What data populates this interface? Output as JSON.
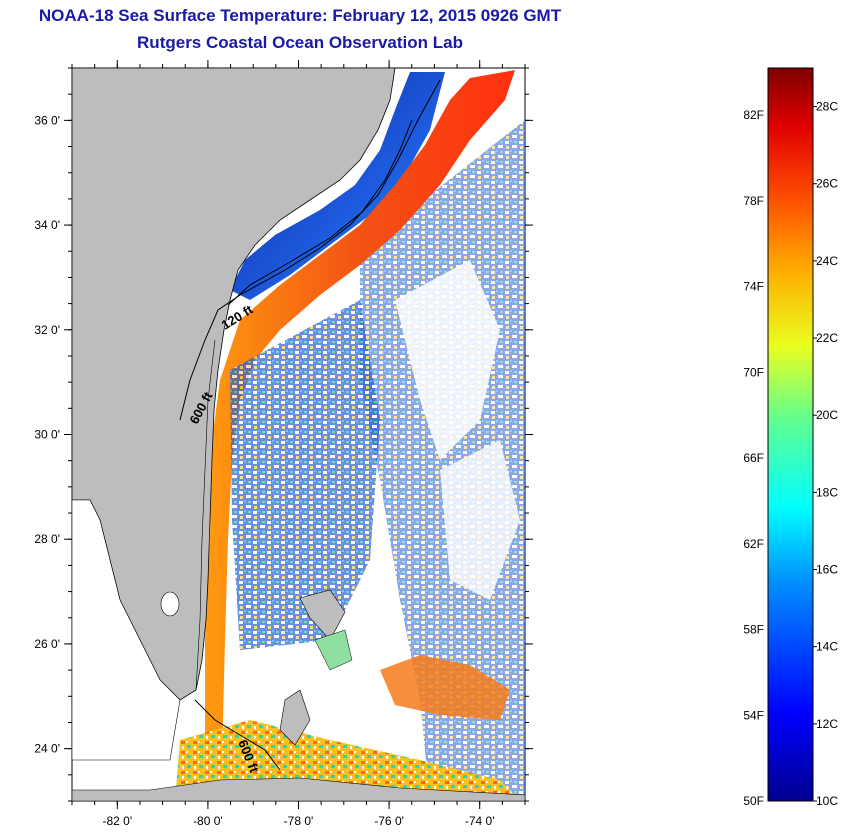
{
  "header": {
    "title": "NOAA-18 Sea Surface Temperature:  February 12, 2015 0926 GMT",
    "subtitle": "Rutgers Coastal Ocean Observation Lab"
  },
  "map": {
    "lon_range": [
      -83,
      -73
    ],
    "lat_range": [
      23,
      37
    ],
    "lat_ticks": [
      {
        "value": 36,
        "label": "36 0'"
      },
      {
        "value": 34,
        "label": "34 0'"
      },
      {
        "value": 32,
        "label": "32 0'"
      },
      {
        "value": 30,
        "label": "30 0'"
      },
      {
        "value": 28,
        "label": "28 0'"
      },
      {
        "value": 26,
        "label": "26 0'"
      },
      {
        "value": 24,
        "label": "24 0'"
      }
    ],
    "lon_ticks": [
      {
        "value": -82,
        "label": "-82 0'"
      },
      {
        "value": -80,
        "label": "-80 0'"
      },
      {
        "value": -78,
        "label": "-78 0'"
      },
      {
        "value": -76,
        "label": "-76 0'"
      },
      {
        "value": -74,
        "label": "-74 0'"
      }
    ],
    "contour_labels": [
      {
        "text": "120 ft"
      },
      {
        "text": "600 ft"
      },
      {
        "text": "600 ft"
      }
    ],
    "colors": {
      "land": "#bdbdbd",
      "cloud": "#ffffff",
      "cold_shelf": "#1535b0",
      "gulf_stream": "#e84a12"
    }
  },
  "colorbar": {
    "fahrenheit_labels": [
      "82F",
      "78F",
      "74F",
      "70F",
      "66F",
      "62F",
      "58F",
      "54F",
      "50F"
    ],
    "celsius_labels": [
      "28C",
      "26C",
      "24C",
      "22C",
      "20C",
      "18C",
      "16C",
      "14C",
      "12C",
      "10C"
    ],
    "range_c": [
      10,
      29
    ]
  }
}
